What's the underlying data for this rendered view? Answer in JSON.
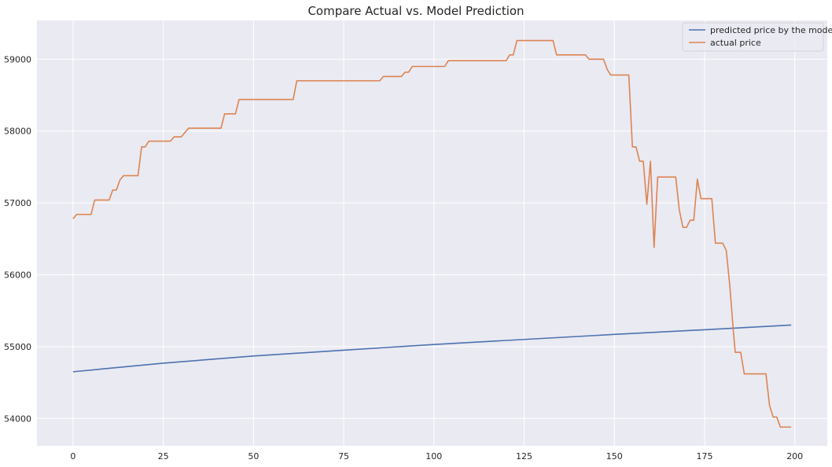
{
  "chart_data": {
    "type": "line",
    "title": "Compare Actual vs. Model Prediction",
    "xlabel": "",
    "ylabel": "",
    "xlim": [
      -10,
      209
    ],
    "ylim": [
      53620,
      59540
    ],
    "x_ticks": [
      0,
      25,
      50,
      75,
      100,
      125,
      150,
      175,
      200
    ],
    "y_ticks": [
      54000,
      55000,
      56000,
      57000,
      58000,
      59000
    ],
    "grid": true,
    "legend_position": "top-right",
    "background_color": "#eaeaf2",
    "series": [
      {
        "name": "predicted price by the model",
        "color": "#4c72b0",
        "points": [
          [
            0,
            54650
          ],
          [
            25,
            54770
          ],
          [
            50,
            54870
          ],
          [
            75,
            54950
          ],
          [
            100,
            55030
          ],
          [
            125,
            55100
          ],
          [
            150,
            55170
          ],
          [
            175,
            55235
          ],
          [
            199,
            55300
          ]
        ]
      },
      {
        "name": "actual price",
        "color": "#dd8452",
        "points": [
          [
            0,
            56780
          ],
          [
            1,
            56840
          ],
          [
            5,
            56840
          ],
          [
            6,
            57040
          ],
          [
            10,
            57040
          ],
          [
            11,
            57180
          ],
          [
            12,
            57180
          ],
          [
            13,
            57320
          ],
          [
            14,
            57380
          ],
          [
            18,
            57380
          ],
          [
            19,
            57780
          ],
          [
            20,
            57780
          ],
          [
            21,
            57860
          ],
          [
            27,
            57860
          ],
          [
            28,
            57920
          ],
          [
            30,
            57920
          ],
          [
            32,
            58040
          ],
          [
            41,
            58040
          ],
          [
            42,
            58240
          ],
          [
            45,
            58240
          ],
          [
            46,
            58440
          ],
          [
            61,
            58440
          ],
          [
            62,
            58700
          ],
          [
            85,
            58700
          ],
          [
            86,
            58760
          ],
          [
            91,
            58760
          ],
          [
            92,
            58820
          ],
          [
            93,
            58820
          ],
          [
            94,
            58900
          ],
          [
            103,
            58900
          ],
          [
            104,
            58980
          ],
          [
            120,
            58980
          ],
          [
            121,
            59060
          ],
          [
            122,
            59060
          ],
          [
            123,
            59260
          ],
          [
            133,
            59260
          ],
          [
            134,
            59060
          ],
          [
            142,
            59060
          ],
          [
            143,
            59000
          ],
          [
            147,
            59000
          ],
          [
            148,
            58860
          ],
          [
            149,
            58780
          ],
          [
            154,
            58780
          ],
          [
            155,
            57780
          ],
          [
            156,
            57780
          ],
          [
            157,
            57580
          ],
          [
            158,
            57580
          ],
          [
            159,
            56980
          ],
          [
            160,
            57580
          ],
          [
            161,
            56380
          ],
          [
            162,
            57360
          ],
          [
            167,
            57360
          ],
          [
            168,
            56900
          ],
          [
            169,
            56660
          ],
          [
            170,
            56660
          ],
          [
            171,
            56760
          ],
          [
            172,
            56760
          ],
          [
            173,
            57330
          ],
          [
            174,
            57060
          ],
          [
            177,
            57060
          ],
          [
            178,
            56440
          ],
          [
            180,
            56440
          ],
          [
            181,
            56340
          ],
          [
            182,
            55840
          ],
          [
            183,
            55200
          ],
          [
            183.5,
            54920
          ],
          [
            185,
            54920
          ],
          [
            186,
            54620
          ],
          [
            192,
            54620
          ],
          [
            193,
            54180
          ],
          [
            194,
            54020
          ],
          [
            195,
            54020
          ],
          [
            196,
            53880
          ],
          [
            199,
            53880
          ]
        ]
      }
    ]
  }
}
